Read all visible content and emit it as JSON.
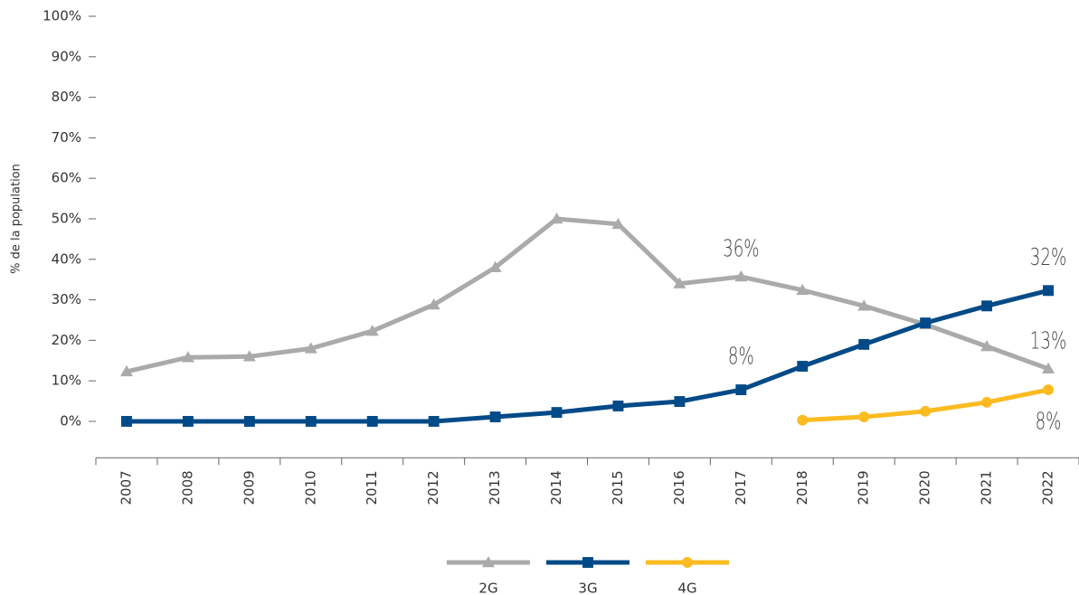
{
  "chart_data": {
    "type": "line",
    "ylabel": "% de la population",
    "categories": [
      "2007",
      "2008",
      "2009",
      "2010",
      "2011",
      "2012",
      "2013",
      "2014",
      "2015",
      "2016",
      "2017",
      "2018",
      "2019",
      "2020",
      "2021",
      "2022"
    ],
    "ylim": [
      -9,
      100
    ],
    "yticks": [
      {
        "value": 0,
        "label": "0%"
      },
      {
        "value": 10,
        "label": "10%"
      },
      {
        "value": 20,
        "label": "20%"
      },
      {
        "value": 30,
        "label": "30%"
      },
      {
        "value": 40,
        "label": "40%"
      },
      {
        "value": 50,
        "label": "50%"
      },
      {
        "value": 60,
        "label": "60%"
      },
      {
        "value": 70,
        "label": "70%"
      },
      {
        "value": 80,
        "label": "80%"
      },
      {
        "value": 90,
        "label": "90%"
      },
      {
        "value": 100,
        "label": "100%"
      }
    ],
    "grid": false,
    "legend": "bottom",
    "series": [
      {
        "name": "2G",
        "color": "#aaaaaa",
        "marker": "triangle",
        "values": [
          12.3,
          15.8,
          16,
          18,
          22.3,
          28.8,
          38,
          50,
          48.7,
          34,
          35.7,
          32.4,
          28.5,
          23.9,
          18.5,
          13
        ],
        "value_labels": [
          null,
          null,
          null,
          null,
          null,
          null,
          null,
          null,
          null,
          null,
          "36%",
          null,
          null,
          null,
          null,
          "13%"
        ]
      },
      {
        "name": "3G",
        "color": "#004a87",
        "marker": "square",
        "values": [
          0,
          0,
          0,
          0,
          0,
          0,
          1.1,
          2.2,
          3.8,
          4.9,
          7.8,
          13.6,
          19,
          24.3,
          28.5,
          32.3
        ],
        "value_labels": [
          null,
          null,
          null,
          null,
          null,
          null,
          null,
          null,
          null,
          null,
          "8%",
          null,
          null,
          null,
          null,
          "32%"
        ]
      },
      {
        "name": "4G",
        "color": "#fbbb21",
        "marker": "circle",
        "values": [
          null,
          null,
          null,
          null,
          null,
          null,
          null,
          null,
          null,
          null,
          null,
          0.3,
          1.1,
          2.5,
          4.7,
          7.8
        ],
        "value_labels": [
          null,
          null,
          null,
          null,
          null,
          null,
          null,
          null,
          null,
          null,
          null,
          null,
          null,
          null,
          null,
          "8%"
        ]
      }
    ]
  }
}
